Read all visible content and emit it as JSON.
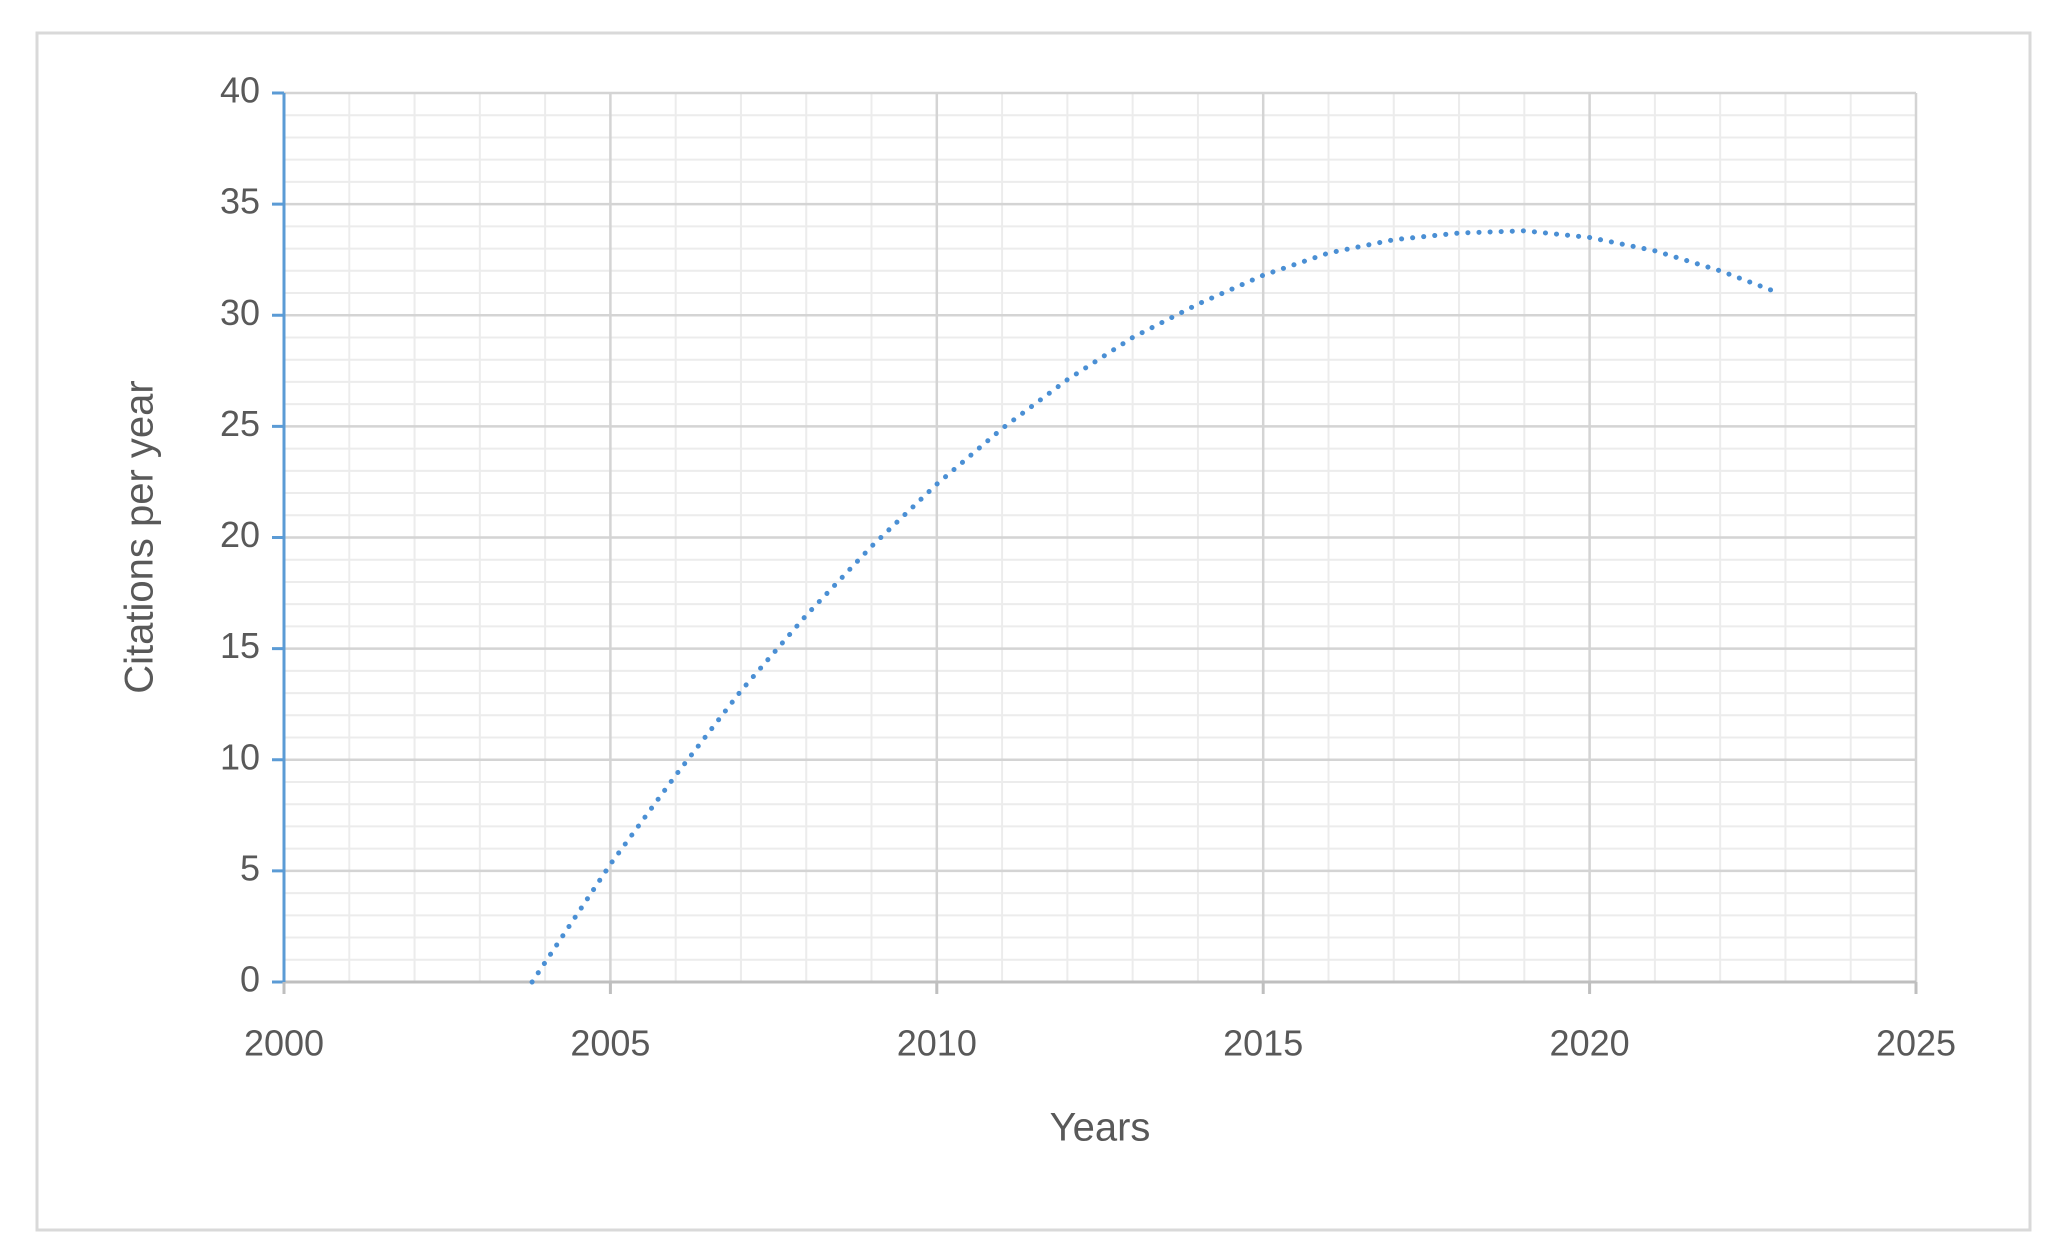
{
  "chart_data": {
    "type": "line",
    "x_label": "Years",
    "y_label": "Citations per year",
    "x": [
      2003.8,
      2005,
      2006,
      2007,
      2008,
      2009,
      2010,
      2011,
      2012,
      2013,
      2014,
      2015,
      2016,
      2017,
      2018,
      2019,
      2020,
      2021,
      2022,
      2022.9
    ],
    "series": [
      {
        "color": "#4a8fd4",
        "dash": "dotted",
        "values": [
          0,
          5.3,
          9.3,
          13.1,
          16.5,
          19.6,
          22.4,
          24.9,
          27.1,
          29.0,
          30.5,
          31.8,
          32.8,
          33.4,
          33.7,
          33.8,
          33.5,
          32.9,
          32.0,
          31.0
        ]
      }
    ],
    "xlim": [
      2000,
      2025
    ],
    "xticks": [
      2000,
      2005,
      2010,
      2015,
      2020,
      2025
    ],
    "ylim": [
      0,
      40
    ],
    "yticks": [
      0,
      5,
      10,
      15,
      20,
      25,
      30,
      35,
      40
    ],
    "grid": true,
    "minor_grid": true,
    "x_minor_step": 1,
    "y_minor_step": 1
  }
}
